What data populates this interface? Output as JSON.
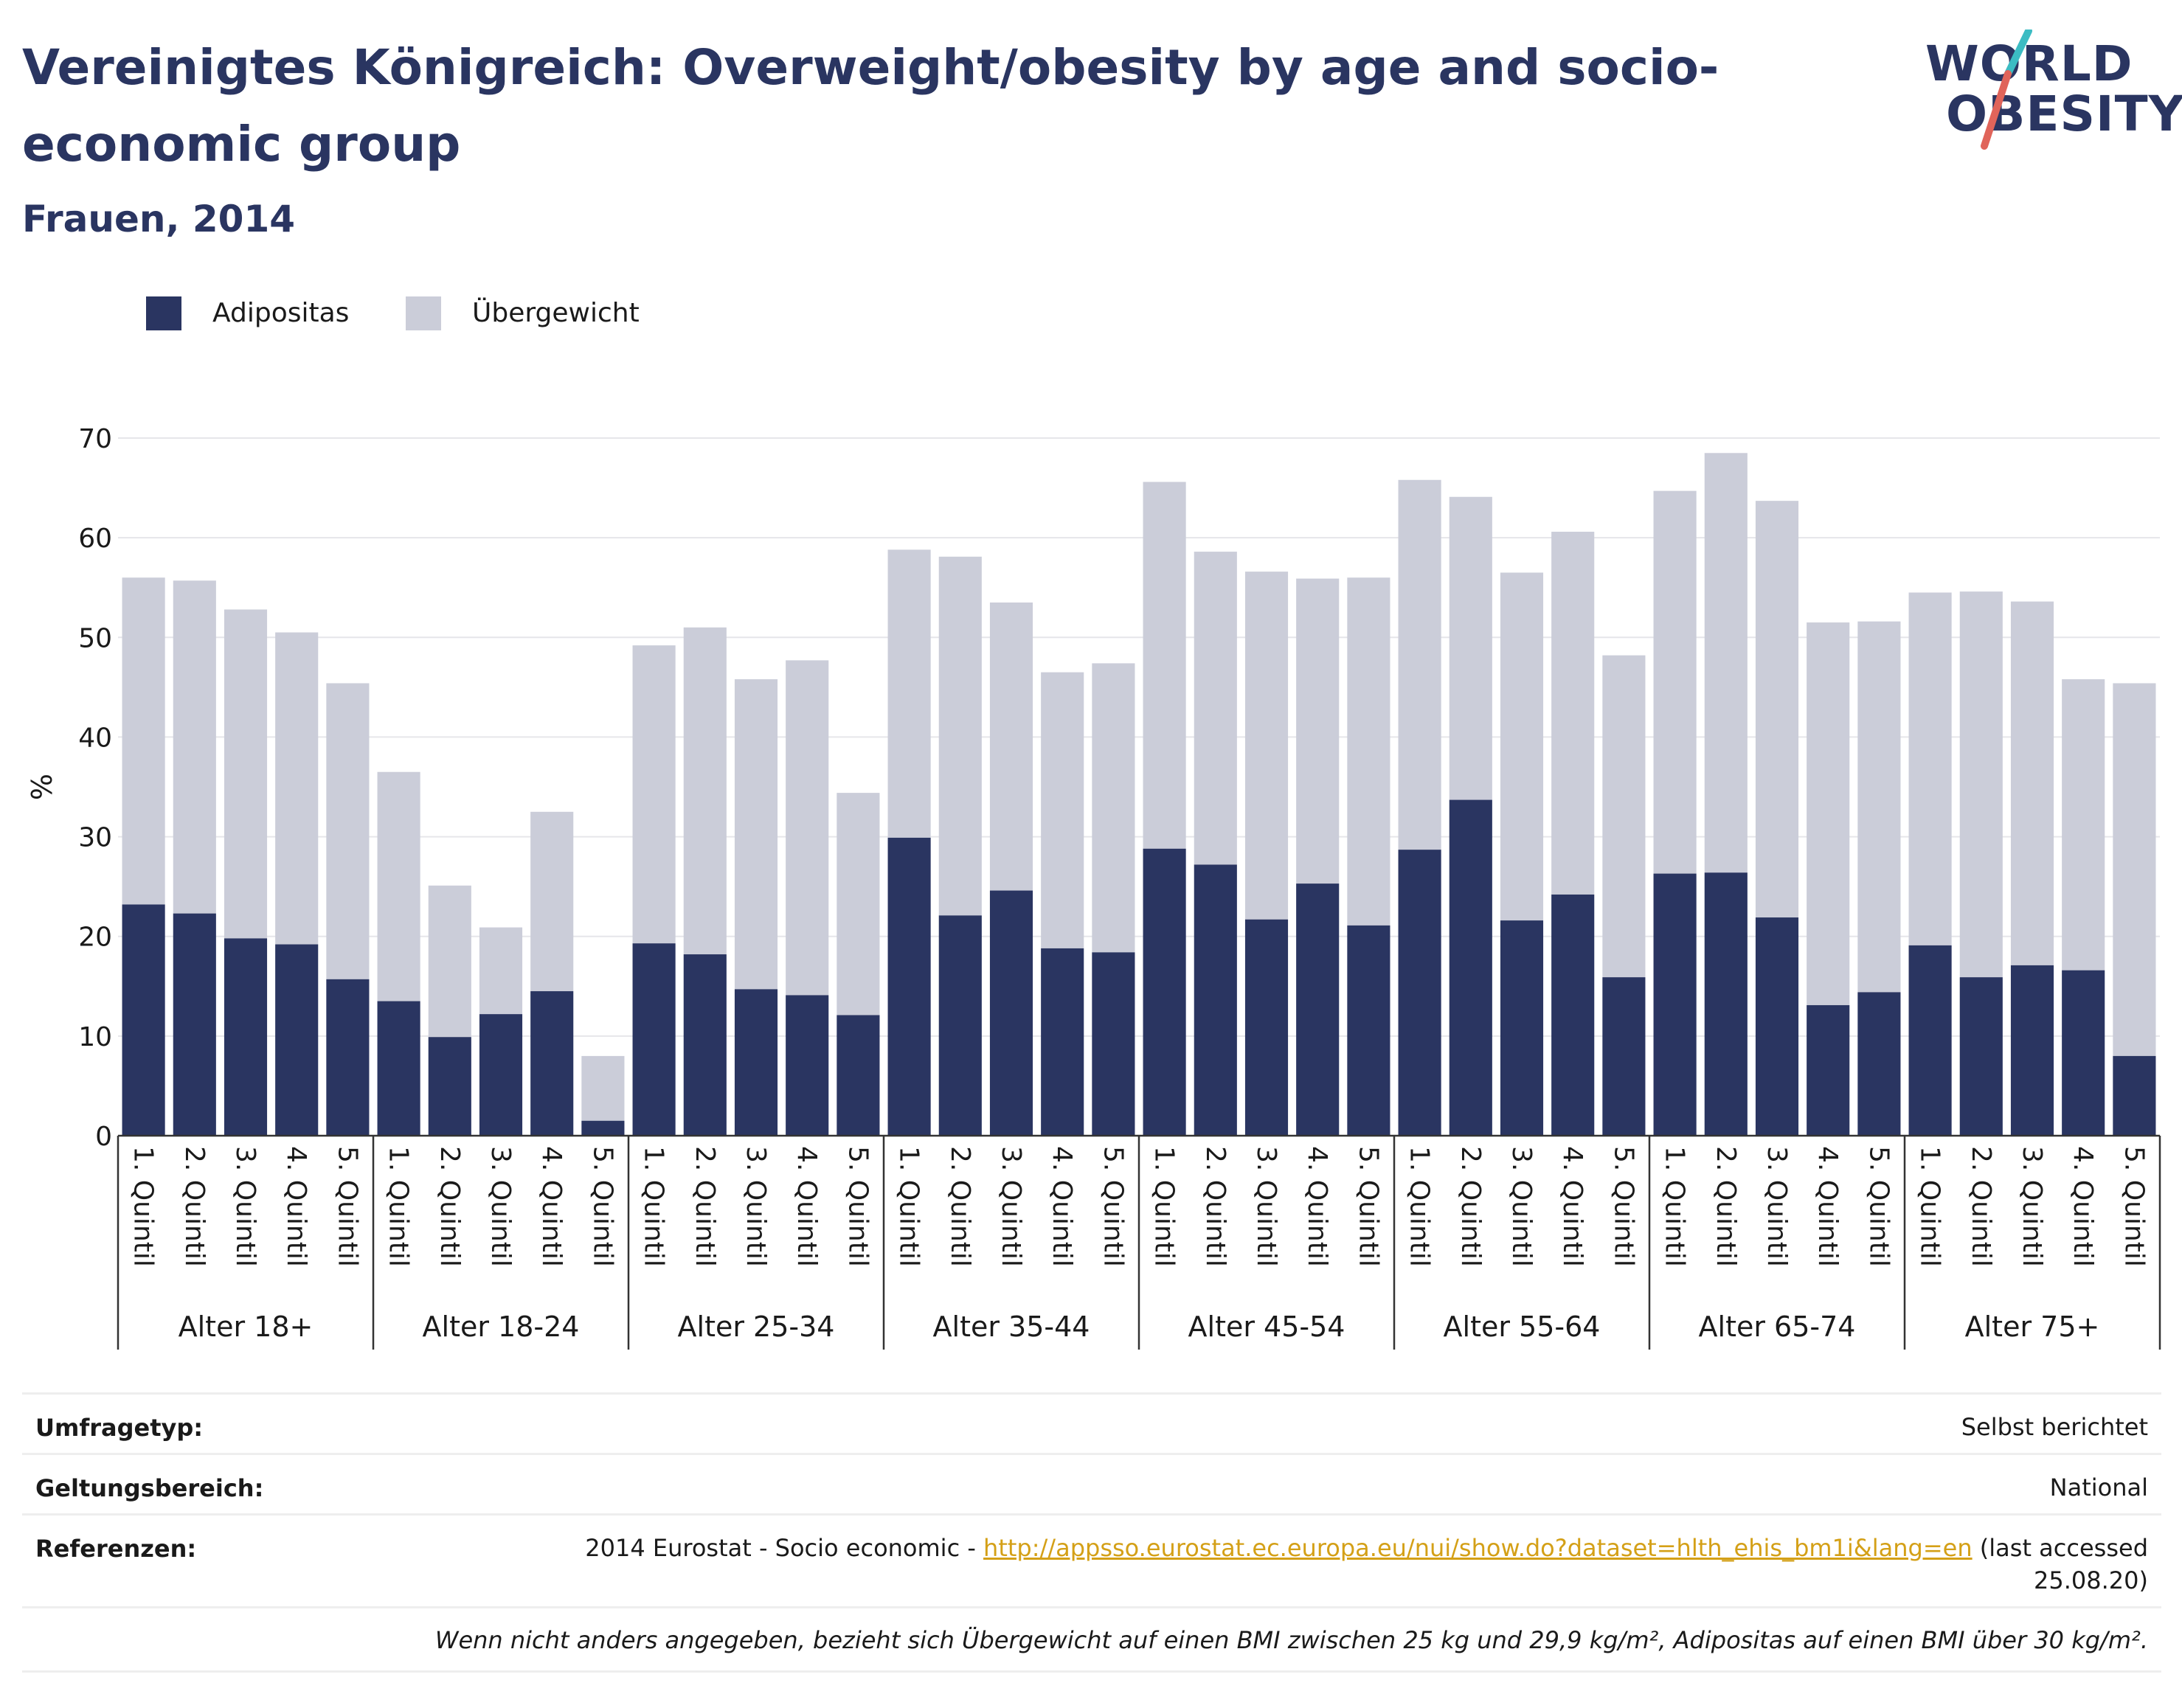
{
  "title": "Vereinigtes Königreich: Overweight/obesity by age and socio-economic group",
  "subtitle": "Frauen, 2014",
  "logo": {
    "line1": "WORLD",
    "line2": "OBESITY"
  },
  "colors": {
    "adipositas": "#2a3561",
    "uebergewicht": "#cbcdd9",
    "title": "#2a3561",
    "link": "#d4a017",
    "logo_accent_teal": "#3cbcc3",
    "logo_accent_red": "#e0645a"
  },
  "legend": [
    {
      "label": "Adipositas",
      "color": "#2a3561"
    },
    {
      "label": "Übergewicht",
      "color": "#cbcdd9"
    }
  ],
  "chart_data": {
    "type": "bar",
    "stacked": true,
    "ylabel": "%",
    "ylim": [
      0,
      70
    ],
    "yticks": [
      0,
      10,
      20,
      30,
      40,
      50,
      60,
      70
    ],
    "grid": true,
    "legend_position": "top-left",
    "groups": [
      "Alter 18+",
      "Alter 18-24",
      "Alter 25-34",
      "Alter 35-44",
      "Alter 45-54",
      "Alter 55-64",
      "Alter 65-74",
      "Alter 75+"
    ],
    "categories": [
      "1. Quintil",
      "2. Quintil",
      "3. Quintil",
      "4. Quintil",
      "5. Quintil"
    ],
    "series": [
      {
        "name": "Adipositas",
        "color": "#2a3561",
        "values": [
          [
            23.2,
            22.3,
            19.8,
            19.2,
            15.7
          ],
          [
            13.5,
            9.9,
            12.2,
            14.5,
            1.5
          ],
          [
            19.3,
            18.2,
            14.7,
            14.1,
            12.1
          ],
          [
            29.9,
            22.1,
            24.6,
            18.8,
            18.4
          ],
          [
            28.8,
            27.2,
            21.7,
            25.3,
            21.1
          ],
          [
            28.7,
            33.7,
            21.6,
            24.2,
            15.9
          ],
          [
            26.3,
            26.4,
            21.9,
            13.1,
            14.4
          ],
          [
            19.1,
            15.9,
            17.1,
            16.6,
            8.0
          ]
        ]
      },
      {
        "name": "Übergewicht",
        "color": "#cbcdd9",
        "values": [
          [
            32.8,
            33.4,
            33.0,
            31.3,
            29.7
          ],
          [
            23.0,
            15.2,
            8.7,
            18.0,
            6.5
          ],
          [
            29.9,
            32.8,
            31.1,
            33.6,
            22.3
          ],
          [
            28.9,
            36.0,
            28.9,
            27.7,
            29.0
          ],
          [
            36.8,
            31.4,
            34.9,
            30.6,
            34.9
          ],
          [
            37.1,
            30.4,
            34.9,
            36.4,
            32.3
          ],
          [
            38.4,
            42.1,
            41.8,
            38.4,
            37.2
          ],
          [
            35.4,
            38.7,
            36.5,
            29.2,
            37.4
          ]
        ]
      }
    ]
  },
  "info": {
    "survey_label": "Umfragetyp:",
    "survey_value": "Selbst berichtet",
    "scope_label": "Geltungsbereich:",
    "scope_value": "National",
    "refs_label": "Referenzen:",
    "refs_prefix": "2014 Eurostat - Socio economic - ",
    "refs_link": "http://appsso.eurostat.ec.europa.eu/nui/show.do?dataset=hlth_ehis_bm1i&lang=en",
    "refs_suffix1": " (last accessed",
    "refs_suffix2": "25.08.20)",
    "footnote": "Wenn nicht anders angegeben, bezieht sich Übergewicht auf einen BMI zwischen 25 kg und 29,9 kg/m², Adipositas auf einen BMI über 30 kg/m²."
  }
}
